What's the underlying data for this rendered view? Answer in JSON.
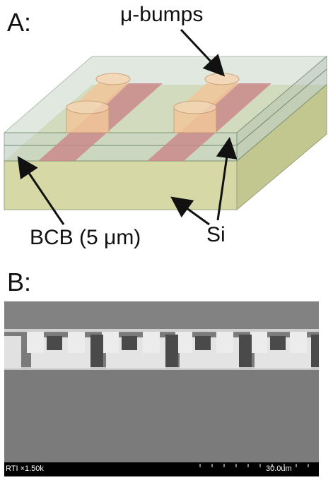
{
  "panel_a": {
    "label": "A:",
    "callouts": {
      "bumps": "μ-bumps",
      "bcb": "BCB (5 μm)",
      "si": "Si"
    }
  },
  "panel_b": {
    "label": "B:",
    "micrograph": {
      "info_left": "RTI ×1.50k",
      "scale_label": "30.0um"
    }
  },
  "colors": {
    "silicon": "#d6d9a6",
    "bcb": "#c9d6c6",
    "trace": "#c98a8a",
    "bump": "#f2c79b",
    "sem_bg": "#7a7a7a",
    "sem_metal": "#e6e6e6"
  }
}
